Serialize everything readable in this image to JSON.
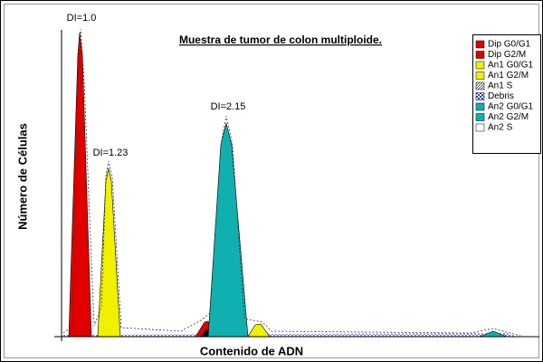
{
  "title": "Muestra de tumor de colon multiploide.",
  "y_axis_label": "Número de Células",
  "x_axis_label": "Contenido de ADN",
  "annotations": [
    "DI=1.0",
    "DI=1.23",
    "DI=2.15"
  ],
  "legend": [
    {
      "label": "Dip G0/G1",
      "color": "#e00000"
    },
    {
      "label": "Dip G2/M",
      "color": "#e00000"
    },
    {
      "label": "An1 G0/G1",
      "color": "#f0f000"
    },
    {
      "label": "An1 G2/M",
      "color": "#f0f000"
    },
    {
      "label": "An1 S",
      "color": "url(#hatch)"
    },
    {
      "label": "Debris",
      "color": "url(#checker)"
    },
    {
      "label": "An2 G0/G1",
      "color": "#10b0b0"
    },
    {
      "label": "An2 G2/M",
      "color": "#10b0b0"
    },
    {
      "label": "An2 S",
      "color": "#ffffff"
    }
  ]
}
